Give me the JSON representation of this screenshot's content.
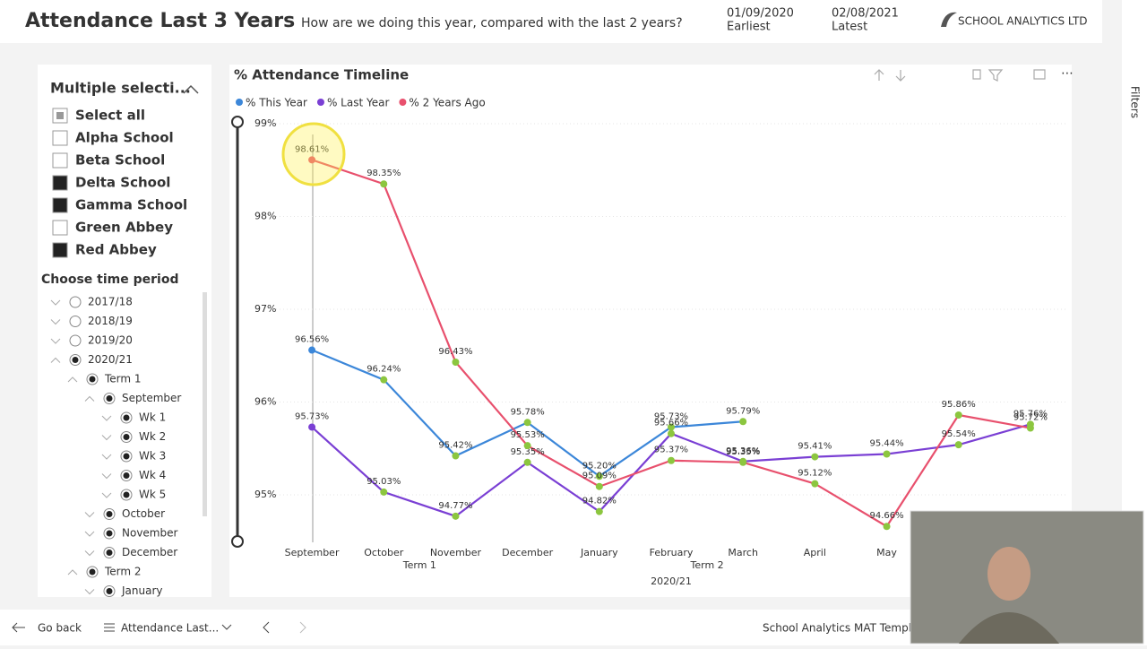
{
  "header": {
    "title": "Attendance Last 3 Years",
    "subtitle": "How are we doing this year, compared with the last 2 years?",
    "earliest_date": "01/09/2020",
    "earliest_label": "Earliest",
    "latest_date": "02/08/2021",
    "latest_label": "Latest",
    "logo": "SCHOOL ANALYTICS LTD"
  },
  "school_slicer": {
    "title": "Multiple selecti...",
    "items": [
      {
        "label": "Select all",
        "checked": false,
        "partial": true
      },
      {
        "label": "Alpha School",
        "checked": false
      },
      {
        "label": "Beta School",
        "checked": false
      },
      {
        "label": "Delta School",
        "checked": true
      },
      {
        "label": "Gamma School",
        "checked": true
      },
      {
        "label": "Green Abbey",
        "checked": false
      },
      {
        "label": "Red Abbey",
        "checked": true
      }
    ]
  },
  "time_slicer": {
    "title": "Choose time period",
    "items": [
      {
        "label": "2017/18",
        "level": 0,
        "selected": false,
        "expanded": false
      },
      {
        "label": "2018/19",
        "level": 0,
        "selected": false,
        "expanded": false
      },
      {
        "label": "2019/20",
        "level": 0,
        "selected": false,
        "expanded": false
      },
      {
        "label": "2020/21",
        "level": 0,
        "selected": true,
        "expanded": true
      },
      {
        "label": "Term 1",
        "level": 1,
        "selected": true,
        "expanded": true
      },
      {
        "label": "September",
        "level": 2,
        "selected": true,
        "expanded": true
      },
      {
        "label": "Wk 1",
        "level": 3,
        "selected": true,
        "expanded": false
      },
      {
        "label": "Wk 2",
        "level": 3,
        "selected": true,
        "expanded": false
      },
      {
        "label": "Wk 3",
        "level": 3,
        "selected": true,
        "expanded": false
      },
      {
        "label": "Wk 4",
        "level": 3,
        "selected": true,
        "expanded": false
      },
      {
        "label": "Wk 5",
        "level": 3,
        "selected": true,
        "expanded": false
      },
      {
        "label": "October",
        "level": 2,
        "selected": true,
        "expanded": false
      },
      {
        "label": "November",
        "level": 2,
        "selected": true,
        "expanded": false
      },
      {
        "label": "December",
        "level": 2,
        "selected": true,
        "expanded": false
      },
      {
        "label": "Term 2",
        "level": 1,
        "selected": true,
        "expanded": true
      },
      {
        "label": "January",
        "level": 2,
        "selected": true,
        "expanded": false
      }
    ]
  },
  "chart_data": {
    "type": "line",
    "title": "% Attendance Timeline",
    "categories": [
      "September",
      "October",
      "November",
      "December",
      "January",
      "February",
      "March",
      "April",
      "May",
      null,
      null
    ],
    "x_groups": [
      "Term 1",
      "Term 2"
    ],
    "x_super_label": "2020/21",
    "ylim": [
      94.5,
      99.1
    ],
    "yticks": [
      {
        "value": 95,
        "label": "95%"
      },
      {
        "value": 96,
        "label": "96%"
      },
      {
        "value": 97,
        "label": "97%"
      },
      {
        "value": 98,
        "label": "98%"
      },
      {
        "value": 99,
        "label": "99%"
      }
    ],
    "grid": true,
    "marker_color": "#8cc63f",
    "series": [
      {
        "name": "% This Year",
        "color": "#3c87d9",
        "values": [
          96.56,
          96.24,
          95.42,
          95.78,
          95.2,
          95.73,
          95.79,
          null,
          null,
          null,
          null
        ],
        "value_labels": [
          "96.56%",
          "96.24%",
          "95.42%",
          "95.78%",
          "95.20%",
          "95.73%",
          "95.79%",
          null,
          null,
          null,
          null
        ]
      },
      {
        "name": "% Last Year",
        "color": "#7a3fd4",
        "values": [
          95.73,
          95.03,
          94.77,
          95.35,
          94.82,
          95.66,
          95.36,
          95.41,
          95.44,
          95.54,
          95.76
        ],
        "value_labels": [
          "95.73%",
          "95.03%",
          "94.77%",
          "95.35%",
          "94.82%",
          "95.66%",
          "95.36%",
          "95.41%",
          "95.44%",
          "95.54%",
          "95.76%"
        ]
      },
      {
        "name": "% 2 Years Ago",
        "color": "#e8506d",
        "values": [
          98.61,
          98.35,
          96.43,
          95.53,
          95.09,
          95.37,
          95.35,
          95.12,
          94.66,
          95.86,
          95.72
        ],
        "value_labels": [
          "98.61%",
          "98.35%",
          "96.43%",
          "95.53%",
          "95.09%",
          "95.37%",
          "95.35%",
          "95.12%",
          "94.66%",
          "95.86%",
          "95.72%"
        ]
      }
    ]
  },
  "footer": {
    "back": "Go back",
    "page": "Attendance Last...",
    "report": "School Analytics MAT Template",
    "pane": "Filters"
  }
}
